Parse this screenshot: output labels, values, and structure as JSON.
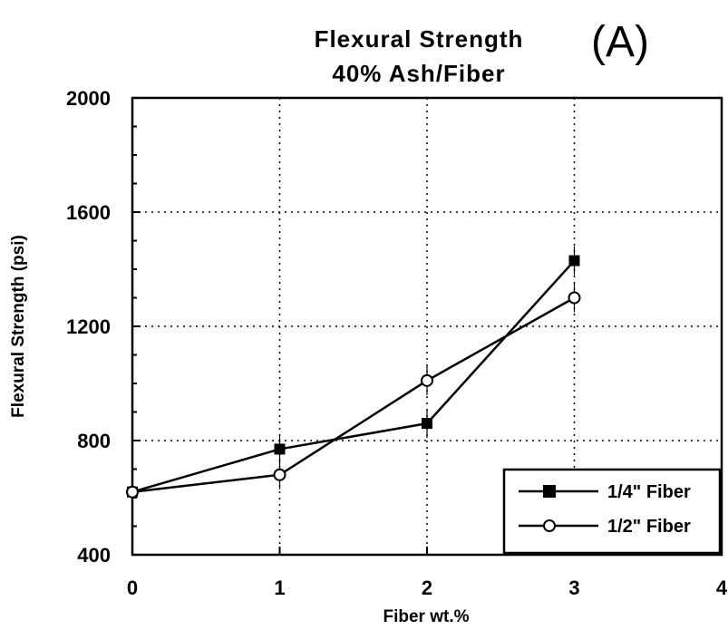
{
  "chart_data": {
    "type": "line",
    "title": "Flexural Strength",
    "subtitle": "40% Ash/Fiber",
    "panel_label": "(A)",
    "xlabel": "Fiber wt.%",
    "ylabel": "Flexural Strength (psi)",
    "xlim": [
      0,
      4
    ],
    "ylim": [
      400,
      2000
    ],
    "x_ticks": [
      0,
      1,
      2,
      3,
      4
    ],
    "x_tick_labels": [
      "0",
      "1",
      "2",
      "3",
      "4"
    ],
    "y_ticks": [
      400,
      800,
      1200,
      1600,
      2000
    ],
    "y_tick_labels": [
      "400",
      "800",
      "1200",
      "1600",
      "2000"
    ],
    "grid": true,
    "legend_position": "bottom-right",
    "x": [
      0,
      1,
      2,
      3
    ],
    "series": [
      {
        "name": "1/4\" Fiber",
        "marker": "filled-square",
        "values": [
          620,
          770,
          860,
          1430
        ]
      },
      {
        "name": "1/2\" Fiber",
        "marker": "open-circle",
        "values": [
          620,
          680,
          1010,
          1300
        ]
      }
    ]
  }
}
